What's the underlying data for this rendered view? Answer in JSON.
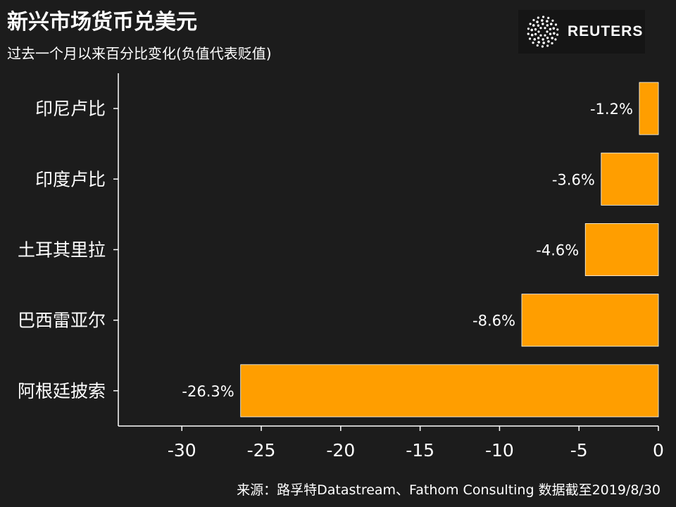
{
  "title": "新兴市场货币兑美元",
  "subtitle": "过去一个月以来百分比变化(负值代表贬值)",
  "logo": {
    "text": "REUTERS",
    "icon": "reuters-dot-ring-icon"
  },
  "source": "来源：路孚特Datastream、Fathom Consulting 数据截至2019/8/30",
  "colors": {
    "background": "#1c1c1c",
    "bar": "#ff9e00",
    "text": "#ffffff",
    "axis": "#ffffff"
  },
  "chart_data": {
    "type": "bar",
    "orientation": "horizontal",
    "categories": [
      "印尼卢比",
      "印度卢比",
      "土耳其里拉",
      "巴西雷亚尔",
      "阿根廷披索"
    ],
    "values": [
      -1.2,
      -3.6,
      -4.6,
      -8.6,
      -26.3
    ],
    "value_labels": [
      "-1.2%",
      "-3.6%",
      "-4.6%",
      "-8.6%",
      "-26.3%"
    ],
    "xlim": [
      -34,
      0
    ],
    "xticks": [
      -30,
      -25,
      -20,
      -15,
      -10,
      -5,
      0
    ],
    "xtick_labels": [
      "-30",
      "-25",
      "-20",
      "-15",
      "-10",
      "-5",
      "0"
    ],
    "grid": false
  }
}
